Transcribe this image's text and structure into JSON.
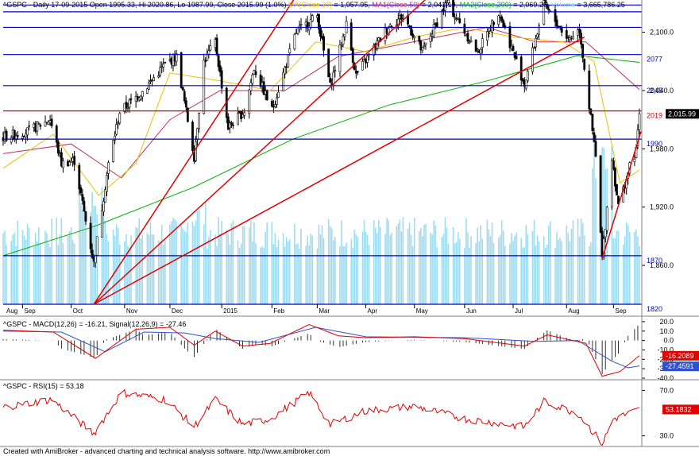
{
  "header": {
    "symbol": "^GSPC",
    "desc": " - Daily 17-09-2015 Open 1995.33, Hi 2020.86, Lo 1987.99, Close 2015.99 (1.0%)",
    "ma_label": " MA(Close,20)",
    "ma_value": " = 1,957.95,",
    "ma1_label": " MA1(Close,50)",
    "ma1_value": " = 2,041.19,",
    "ma2_label": " MA2(Close,200)",
    "ma2_value": " = 2,069.26,",
    "vol_label": " Volume",
    "vol_value": " = 3,665,786.25"
  },
  "colors": {
    "ma20": "#e8c000",
    "ma50": "#c03060",
    "ma200": "#00b000",
    "volume": "#9fdcf0",
    "hline_blue": "#0000c8",
    "hline_red": "#e00000",
    "trend_red": "#e00000",
    "macd": "#e00000",
    "signal": "#3050d0",
    "rsi": "#e00000",
    "price_box": "#000000"
  },
  "chart_data": [
    {
      "type": "candlestick",
      "title": "^GSPC - Daily",
      "date_range": [
        "2014-08-20",
        "2015-09-17"
      ],
      "last": {
        "date": "17-09-2015",
        "open": 1995.33,
        "high": 2020.86,
        "low": 1987.99,
        "close": 2015.99,
        "change_pct": 1.0
      },
      "ylim": [
        1820,
        2125
      ],
      "y_ticks": [
        1860,
        1920,
        1980,
        2040,
        2100
      ],
      "y_tick_labels": [
        "1,860.0",
        "1,920.0",
        "1,980.0",
        "2,040.0",
        "2,100.0"
      ],
      "x_labels": [
        "Aug",
        "Sep",
        "Oct",
        "Nov",
        "Dec",
        "2015",
        "Feb",
        "Mar",
        "Apr",
        "May",
        "Jun",
        "Jul",
        "Aug",
        "Sep"
      ],
      "close_path": [
        {
          "x": "2014-08-20",
          "y": 1992
        },
        {
          "x": "2014-09-04",
          "y": 1998
        },
        {
          "x": "2014-09-18",
          "y": 2010
        },
        {
          "x": "2014-09-25",
          "y": 1965
        },
        {
          "x": "2014-10-03",
          "y": 1968
        },
        {
          "x": "2014-10-10",
          "y": 1906
        },
        {
          "x": "2014-10-15",
          "y": 1862
        },
        {
          "x": "2014-10-17",
          "y": 1886
        },
        {
          "x": "2014-10-24",
          "y": 1964
        },
        {
          "x": "2014-10-31",
          "y": 2018
        },
        {
          "x": "2014-11-14",
          "y": 2039
        },
        {
          "x": "2014-11-28",
          "y": 2067
        },
        {
          "x": "2014-12-05",
          "y": 2075
        },
        {
          "x": "2014-12-16",
          "y": 1972
        },
        {
          "x": "2014-12-22",
          "y": 2070
        },
        {
          "x": "2014-12-29",
          "y": 2090
        },
        {
          "x": "2015-01-06",
          "y": 2002
        },
        {
          "x": "2015-01-16",
          "y": 2019
        },
        {
          "x": "2015-01-22",
          "y": 2063
        },
        {
          "x": "2015-02-02",
          "y": 2020
        },
        {
          "x": "2015-02-17",
          "y": 2100
        },
        {
          "x": "2015-03-02",
          "y": 2117
        },
        {
          "x": "2015-03-10",
          "y": 2044
        },
        {
          "x": "2015-03-20",
          "y": 2108
        },
        {
          "x": "2015-03-26",
          "y": 2056
        },
        {
          "x": "2015-04-15",
          "y": 2106
        },
        {
          "x": "2015-04-24",
          "y": 2117
        },
        {
          "x": "2015-05-06",
          "y": 2080
        },
        {
          "x": "2015-05-21",
          "y": 2131
        },
        {
          "x": "2015-06-09",
          "y": 2079
        },
        {
          "x": "2015-06-22",
          "y": 2122
        },
        {
          "x": "2015-07-08",
          "y": 2046
        },
        {
          "x": "2015-07-20",
          "y": 2128
        },
        {
          "x": "2015-08-04",
          "y": 2093
        },
        {
          "x": "2015-08-11",
          "y": 2103
        },
        {
          "x": "2015-08-21",
          "y": 1971
        },
        {
          "x": "2015-08-25",
          "y": 1867
        },
        {
          "x": "2015-08-31",
          "y": 1972
        },
        {
          "x": "2015-09-04",
          "y": 1921
        },
        {
          "x": "2015-09-11",
          "y": 1961
        },
        {
          "x": "2015-09-15",
          "y": 1978
        },
        {
          "x": "2015-09-17",
          "y": 2016
        }
      ],
      "ma20_path": [
        {
          "x": "2014-08-20",
          "y": 1960
        },
        {
          "x": "2014-09-20",
          "y": 1995
        },
        {
          "x": "2014-10-18",
          "y": 1932
        },
        {
          "x": "2014-11-10",
          "y": 1965
        },
        {
          "x": "2014-12-01",
          "y": 2058
        },
        {
          "x": "2015-01-01",
          "y": 2050
        },
        {
          "x": "2015-02-01",
          "y": 2040
        },
        {
          "x": "2015-03-01",
          "y": 2090
        },
        {
          "x": "2015-04-01",
          "y": 2080
        },
        {
          "x": "2015-05-01",
          "y": 2095
        },
        {
          "x": "2015-06-01",
          "y": 2105
        },
        {
          "x": "2015-07-01",
          "y": 2095
        },
        {
          "x": "2015-08-01",
          "y": 2090
        },
        {
          "x": "2015-08-20",
          "y": 2070
        },
        {
          "x": "2015-09-05",
          "y": 1945
        },
        {
          "x": "2015-09-17",
          "y": 1958
        }
      ],
      "ma50_path": [
        {
          "x": "2014-08-20",
          "y": 1975
        },
        {
          "x": "2014-10-01",
          "y": 1985
        },
        {
          "x": "2014-11-01",
          "y": 1950
        },
        {
          "x": "2014-12-01",
          "y": 2010
        },
        {
          "x": "2015-01-01",
          "y": 2040
        },
        {
          "x": "2015-02-10",
          "y": 2040
        },
        {
          "x": "2015-03-15",
          "y": 2075
        },
        {
          "x": "2015-04-15",
          "y": 2085
        },
        {
          "x": "2015-05-15",
          "y": 2095
        },
        {
          "x": "2015-06-15",
          "y": 2105
        },
        {
          "x": "2015-07-15",
          "y": 2090
        },
        {
          "x": "2015-08-15",
          "y": 2090
        },
        {
          "x": "2015-09-17",
          "y": 2041
        }
      ],
      "ma200_path": [
        {
          "x": "2014-08-20",
          "y": 1870
        },
        {
          "x": "2014-10-15",
          "y": 1900
        },
        {
          "x": "2014-12-15",
          "y": 1940
        },
        {
          "x": "2015-02-15",
          "y": 1990
        },
        {
          "x": "2015-04-15",
          "y": 2025
        },
        {
          "x": "2015-06-15",
          "y": 2050
        },
        {
          "x": "2015-08-10",
          "y": 2076
        },
        {
          "x": "2015-09-17",
          "y": 2069
        }
      ],
      "hlines": [
        {
          "value": 2128,
          "label": "",
          "color": "blue"
        },
        {
          "value": 2121,
          "label": "",
          "color": "blue"
        },
        {
          "value": 2105,
          "label": "",
          "color": "blue"
        },
        {
          "value": 2077,
          "label": "2077",
          "color": "blue"
        },
        {
          "value": 2045,
          "label": "2045",
          "color": "blue"
        },
        {
          "value": 2019,
          "label": "2019",
          "color": "red"
        },
        {
          "value": 1990,
          "label": "1990",
          "color": "blue"
        },
        {
          "value": 1870,
          "label": "1870",
          "color": "blue"
        },
        {
          "value": 1820,
          "label": "1820",
          "color": "blue"
        }
      ],
      "trendlines": [
        {
          "from": {
            "x": "2014-10-15",
            "y": 1820
          },
          "to": {
            "x": "2015-02-18",
            "y": 2140
          }
        },
        {
          "from": {
            "x": "2014-10-15",
            "y": 1820
          },
          "to": {
            "x": "2015-05-12",
            "y": 2140
          }
        },
        {
          "from": {
            "x": "2014-10-15",
            "y": 1820
          },
          "to": {
            "x": "2015-08-14",
            "y": 2095
          }
        },
        {
          "from": {
            "x": "2015-08-25",
            "y": 1867
          },
          "to": {
            "x": "2015-09-18",
            "y": 1998
          }
        }
      ],
      "price_tag": "2,015.99"
    },
    {
      "type": "line",
      "title": "^GSPC - MACD(12,26) = -16.21, Signal(12,26,9) = -27.46",
      "ylim": [
        -40,
        25
      ],
      "y_ticks": [
        20,
        10,
        0,
        -10,
        -20,
        -30,
        -40
      ],
      "y_tick_labels": [
        "20.0",
        "10.0",
        "0.0",
        "-10.0",
        "-20.0",
        "-30.0",
        "-40.0"
      ],
      "macd_path": [
        {
          "x": "2014-08-20",
          "y": 11
        },
        {
          "x": "2014-09-20",
          "y": 9
        },
        {
          "x": "2014-10-16",
          "y": -19
        },
        {
          "x": "2014-11-10",
          "y": 12
        },
        {
          "x": "2014-12-01",
          "y": 14
        },
        {
          "x": "2014-12-16",
          "y": -5
        },
        {
          "x": "2014-12-29",
          "y": 10
        },
        {
          "x": "2015-01-15",
          "y": -6
        },
        {
          "x": "2015-02-01",
          "y": -3
        },
        {
          "x": "2015-02-25",
          "y": 17
        },
        {
          "x": "2015-03-15",
          "y": 5
        },
        {
          "x": "2015-04-01",
          "y": 3
        },
        {
          "x": "2015-05-01",
          "y": 4
        },
        {
          "x": "2015-06-01",
          "y": 2
        },
        {
          "x": "2015-07-08",
          "y": -6
        },
        {
          "x": "2015-07-22",
          "y": 6
        },
        {
          "x": "2015-08-15",
          "y": -3
        },
        {
          "x": "2015-08-25",
          "y": -38
        },
        {
          "x": "2015-09-05",
          "y": -33
        },
        {
          "x": "2015-09-17",
          "y": -16
        }
      ],
      "signal_path": [
        {
          "x": "2014-08-20",
          "y": 10
        },
        {
          "x": "2014-09-25",
          "y": 9
        },
        {
          "x": "2014-10-22",
          "y": -12
        },
        {
          "x": "2014-11-15",
          "y": 9
        },
        {
          "x": "2014-12-10",
          "y": 8
        },
        {
          "x": "2014-12-29",
          "y": 2
        },
        {
          "x": "2015-01-25",
          "y": -2
        },
        {
          "x": "2015-03-01",
          "y": 14
        },
        {
          "x": "2015-04-01",
          "y": 4
        },
        {
          "x": "2015-06-01",
          "y": 3
        },
        {
          "x": "2015-07-15",
          "y": -1
        },
        {
          "x": "2015-08-10",
          "y": 0
        },
        {
          "x": "2015-08-31",
          "y": -22
        },
        {
          "x": "2015-09-10",
          "y": -29
        },
        {
          "x": "2015-09-17",
          "y": -27
        }
      ],
      "tags": [
        "-16.2089",
        "-27.4591"
      ]
    },
    {
      "type": "line",
      "title": "^GSPC - RSI(15) = 53.18",
      "ylim": [
        22,
        78
      ],
      "y_ticks": [
        70,
        30
      ],
      "y_tick_labels": [
        "70.0",
        "30.0"
      ],
      "rsi_path": [
        {
          "x": "2014-08-20",
          "y": 55
        },
        {
          "x": "2014-09-19",
          "y": 62
        },
        {
          "x": "2014-10-15",
          "y": 32
        },
        {
          "x": "2014-11-01",
          "y": 68
        },
        {
          "x": "2014-11-28",
          "y": 62
        },
        {
          "x": "2014-12-16",
          "y": 38
        },
        {
          "x": "2014-12-29",
          "y": 62
        },
        {
          "x": "2015-01-15",
          "y": 40
        },
        {
          "x": "2015-02-01",
          "y": 45
        },
        {
          "x": "2015-02-25",
          "y": 68
        },
        {
          "x": "2015-03-10",
          "y": 40
        },
        {
          "x": "2015-04-01",
          "y": 52
        },
        {
          "x": "2015-05-01",
          "y": 56
        },
        {
          "x": "2015-06-01",
          "y": 45
        },
        {
          "x": "2015-07-08",
          "y": 38
        },
        {
          "x": "2015-07-20",
          "y": 60
        },
        {
          "x": "2015-08-10",
          "y": 50
        },
        {
          "x": "2015-08-25",
          "y": 23
        },
        {
          "x": "2015-09-01",
          "y": 45
        },
        {
          "x": "2015-09-17",
          "y": 53
        }
      ],
      "tag": "53.1832"
    }
  ],
  "footer": {
    "credit": "Created with AmiBroker - advanced charting and technical analysis software. http://www.amibroker.com"
  }
}
